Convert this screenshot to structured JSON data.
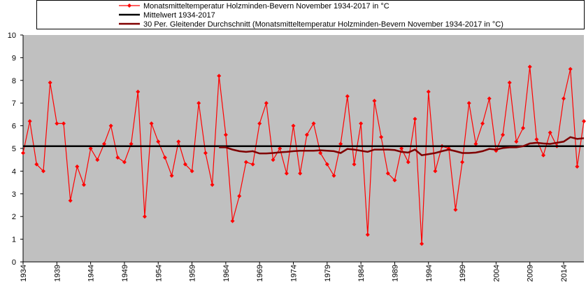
{
  "chart_data": {
    "type": "line",
    "x": [
      1934,
      1935,
      1936,
      1937,
      1938,
      1939,
      1940,
      1941,
      1942,
      1943,
      1944,
      1945,
      1946,
      1947,
      1948,
      1949,
      1950,
      1951,
      1952,
      1953,
      1954,
      1955,
      1956,
      1957,
      1958,
      1959,
      1960,
      1961,
      1962,
      1963,
      1964,
      1965,
      1966,
      1967,
      1968,
      1969,
      1970,
      1971,
      1972,
      1973,
      1974,
      1975,
      1976,
      1977,
      1978,
      1979,
      1980,
      1981,
      1982,
      1983,
      1984,
      1985,
      1986,
      1987,
      1988,
      1989,
      1990,
      1991,
      1992,
      1993,
      1994,
      1995,
      1996,
      1997,
      1998,
      1999,
      2000,
      2001,
      2002,
      2003,
      2004,
      2005,
      2006,
      2007,
      2008,
      2009,
      2010,
      2011,
      2012,
      2013,
      2014,
      2015,
      2016,
      2017
    ],
    "series": [
      {
        "name": "Monatsmitteltemperatur Holzminden-Bevern November 1934-2017 in °C",
        "color": "#ff0000",
        "values": [
          4.8,
          6.2,
          4.3,
          4.0,
          7.9,
          6.1,
          6.1,
          2.7,
          4.2,
          3.4,
          5.0,
          4.5,
          5.2,
          6.0,
          4.6,
          4.4,
          5.2,
          7.5,
          2.0,
          6.1,
          5.3,
          4.6,
          3.8,
          5.3,
          4.3,
          4.0,
          7.0,
          4.8,
          3.4,
          8.2,
          5.6,
          1.8,
          2.9,
          4.4,
          4.3,
          6.1,
          7.0,
          4.5,
          5.0,
          3.9,
          6.0,
          3.9,
          5.6,
          6.1,
          4.8,
          4.3,
          3.8,
          5.2,
          7.3,
          4.3,
          6.1,
          1.2,
          7.1,
          5.5,
          3.9,
          3.6,
          5.0,
          4.4,
          6.3,
          0.8,
          7.5,
          4.0,
          5.1,
          5.0,
          2.3,
          4.4,
          7.0,
          5.2,
          6.1,
          7.2,
          4.9,
          5.6,
          7.9,
          5.3,
          5.9,
          8.6,
          5.4,
          4.7,
          5.7,
          5.1,
          7.2,
          8.5,
          4.2,
          6.2
        ]
      },
      {
        "name": "Mittelwert 1934-2017",
        "color": "#000000",
        "value": 5.1
      },
      {
        "name": "30 Per. Gleitender Durchschnitt (Monatsmitteltemperatur Holzminden-Bevern November 1934-2017 in °C)",
        "color": "#800000",
        "values": [
          null,
          null,
          null,
          null,
          null,
          null,
          null,
          null,
          null,
          null,
          null,
          null,
          null,
          null,
          null,
          null,
          null,
          null,
          null,
          null,
          null,
          null,
          null,
          null,
          null,
          null,
          null,
          null,
          null,
          5.05,
          5.05,
          4.95,
          4.88,
          4.85,
          4.88,
          4.78,
          4.78,
          4.8,
          4.83,
          4.85,
          4.88,
          4.9,
          4.9,
          4.9,
          4.92,
          4.9,
          4.88,
          4.8,
          4.98,
          4.95,
          4.9,
          4.85,
          4.95,
          4.95,
          4.95,
          4.93,
          4.85,
          4.82,
          4.95,
          4.7,
          4.75,
          4.8,
          4.88,
          4.95,
          4.88,
          4.8,
          4.8,
          4.82,
          4.88,
          4.98,
          4.95,
          5.02,
          5.05,
          5.05,
          5.1,
          5.22,
          5.25,
          5.22,
          5.2,
          5.25,
          5.3,
          5.5,
          5.42,
          5.45
        ]
      }
    ],
    "xlim": [
      1934,
      2017
    ],
    "xticks": [
      1934,
      1939,
      1944,
      1949,
      1954,
      1959,
      1964,
      1969,
      1974,
      1979,
      1984,
      1989,
      1994,
      1999,
      2004,
      2009,
      2014
    ],
    "ylim": [
      0,
      10
    ],
    "yticks": [
      0,
      1,
      2,
      3,
      4,
      5,
      6,
      7,
      8,
      9,
      10
    ],
    "grid": false,
    "legend": "top"
  }
}
